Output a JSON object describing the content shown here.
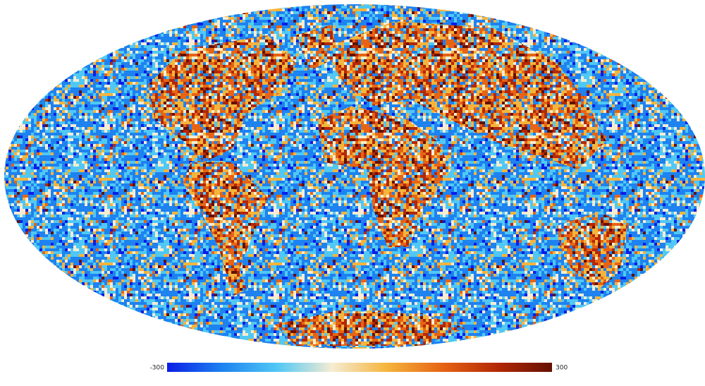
{
  "colorbar": {
    "ticks": [
      -300,
      300
    ],
    "colors": [
      "#0a1ee6",
      "#1e82f0",
      "#50c8f5",
      "#f5ecd2",
      "#f5b43c",
      "#e66414",
      "#b42806",
      "#641000"
    ]
  }
}
